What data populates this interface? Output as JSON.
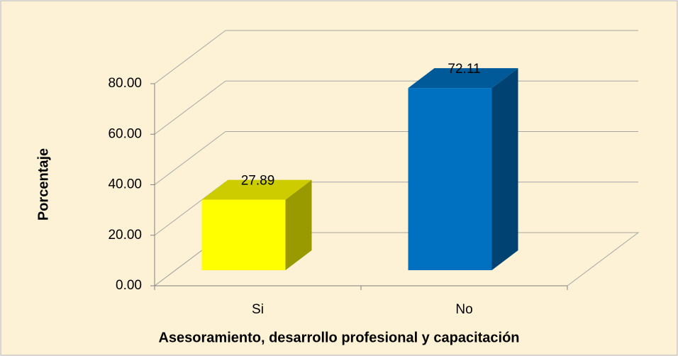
{
  "chart_data": {
    "type": "bar3d",
    "categories": [
      "Si",
      "No"
    ],
    "values": [
      27.89,
      72.11
    ],
    "colors": [
      "#ffff00",
      "#0070c0"
    ],
    "xlabel": "Asesoramiento, desarrollo profesional y capacitación",
    "ylabel": "Porcentaje",
    "ylim": [
      0,
      80
    ],
    "yticks": [
      {
        "value": 0,
        "label": "0.00"
      },
      {
        "value": 20,
        "label": "20.00"
      },
      {
        "value": 40,
        "label": "40.00"
      },
      {
        "value": 60,
        "label": "60.00"
      },
      {
        "value": 80,
        "label": "80.00"
      }
    ],
    "grid": true
  }
}
